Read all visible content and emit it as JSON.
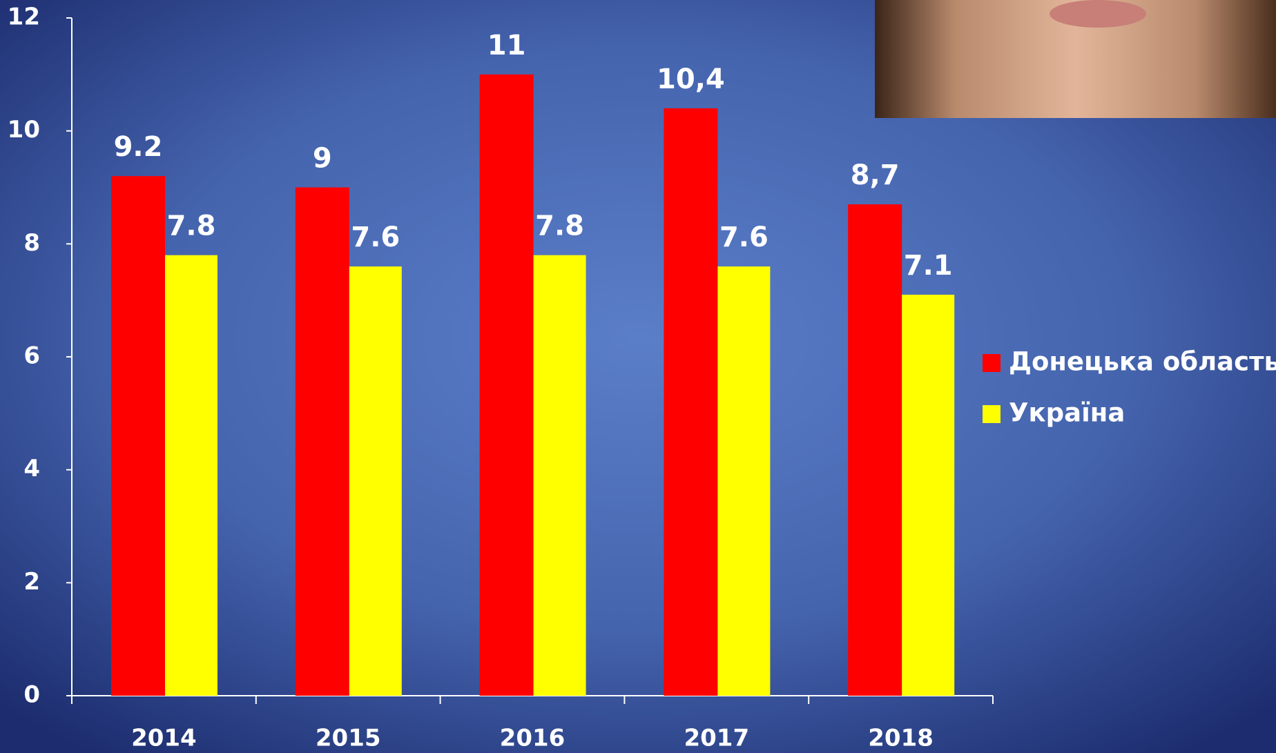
{
  "chart_data": {
    "type": "bar",
    "categories": [
      "2014",
      "2015",
      "2016",
      "2017",
      "2018"
    ],
    "series": [
      {
        "name": "Донецька область",
        "color": "#ff0000",
        "values": [
          9.2,
          9,
          11,
          10.4,
          8.7
        ],
        "value_labels": [
          "9.2",
          "9",
          "11",
          "10,4",
          "8,7"
        ]
      },
      {
        "name": "Україна",
        "color": "#ffff00",
        "values": [
          7.8,
          7.6,
          7.8,
          7.6,
          7.1
        ]
      }
    ],
    "ylim": [
      0,
      12
    ],
    "yticks": [
      0,
      2,
      4,
      6,
      8,
      10,
      12
    ],
    "grid": false,
    "legend": "right"
  }
}
